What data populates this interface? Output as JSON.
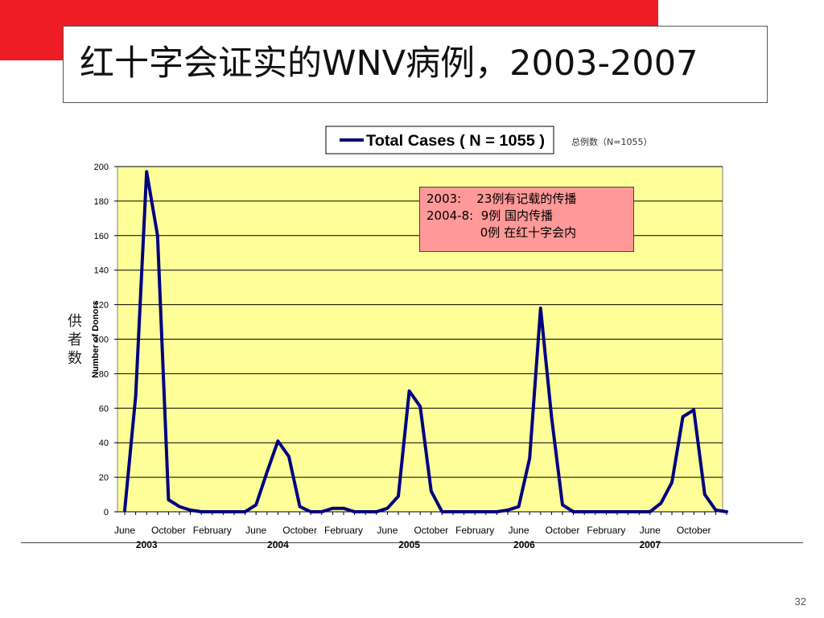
{
  "slide": {
    "title": "红十字会证实的WNV病例，2003-2007",
    "page_number": "32",
    "side_label": "供者数",
    "total_note": "总例数（N=1055）",
    "annotation_lines": [
      "2003:    23例有记载的传播",
      "2004-8:  9例 国内传播",
      "              0例 在红十字会内"
    ]
  },
  "colors": {
    "banner": "#ee1c25",
    "plot_background": "#ffff99",
    "series_line": "#000080",
    "annotation_background": "#ff9999"
  },
  "chart_data": {
    "type": "line",
    "ylabel": "Number of Donors",
    "ylim": [
      0,
      200
    ],
    "yticks": [
      0,
      20,
      40,
      60,
      80,
      100,
      120,
      140,
      160,
      180,
      200
    ],
    "grid": true,
    "legend_position": "top-center",
    "x_tick_labels": [
      {
        "label": "June",
        "index": 0
      },
      {
        "label": "October",
        "index": 4
      },
      {
        "label": "February",
        "index": 8
      },
      {
        "label": "June",
        "index": 12
      },
      {
        "label": "October",
        "index": 16
      },
      {
        "label": "February",
        "index": 20
      },
      {
        "label": "June",
        "index": 24
      },
      {
        "label": "October",
        "index": 28
      },
      {
        "label": "February",
        "index": 32
      },
      {
        "label": "June",
        "index": 36
      },
      {
        "label": "October",
        "index": 40
      },
      {
        "label": "February",
        "index": 44
      },
      {
        "label": "June",
        "index": 48
      },
      {
        "label": "October",
        "index": 52
      }
    ],
    "year_labels": [
      {
        "label": "2003",
        "index": 2
      },
      {
        "label": "2004",
        "index": 14
      },
      {
        "label": "2005",
        "index": 26
      },
      {
        "label": "2006",
        "index": 36.5
      },
      {
        "label": "2007",
        "index": 48
      }
    ],
    "series": [
      {
        "name": "Total Cases ( N = 1055 )",
        "values": [
          1,
          67,
          197,
          160,
          7,
          3,
          1,
          0,
          0,
          0,
          0,
          0,
          4,
          23,
          41,
          32,
          3,
          0,
          0,
          2,
          2,
          0,
          0,
          0,
          2,
          9,
          70,
          61,
          12,
          0,
          0,
          0,
          0,
          0,
          0,
          1,
          3,
          31,
          118,
          55,
          4,
          0,
          0,
          0,
          0,
          0,
          0,
          0,
          0,
          5,
          17,
          55,
          59,
          10,
          1,
          0
        ]
      }
    ]
  }
}
